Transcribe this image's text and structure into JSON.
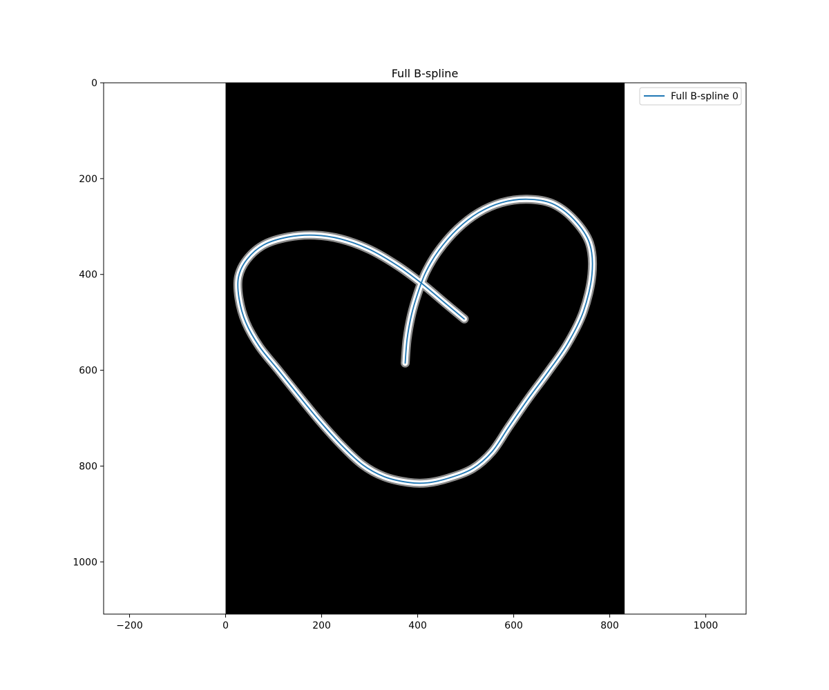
{
  "chart_data": {
    "type": "line",
    "title": "Full B-spline",
    "xlabel": "",
    "ylabel": "",
    "xlim": [
      -254,
      1084
    ],
    "ylim": [
      1109,
      0
    ],
    "y_inverted": true,
    "grid": false,
    "legend_placement": "top-right",
    "x_ticks": [
      -200,
      0,
      200,
      400,
      600,
      800,
      1000
    ],
    "x_tick_labels": [
      "−200",
      "0",
      "200",
      "400",
      "600",
      "800",
      "1000"
    ],
    "y_ticks": [
      0,
      200,
      400,
      600,
      800,
      1000
    ],
    "y_tick_labels": [
      "0",
      "200",
      "400",
      "600",
      "800",
      "1000"
    ],
    "image": {
      "description": "binary mask image",
      "x_extent": [
        0,
        831
      ],
      "y_extent": [
        0,
        1109
      ],
      "background_color": "#000000",
      "stroke_color": "#ffffff"
    },
    "series": [
      {
        "name": "Full B-spline 0",
        "color": "#1f77b4",
        "points": [
          [
            497,
            493
          ],
          [
            455,
            458
          ],
          [
            410,
            420
          ],
          [
            360,
            383
          ],
          [
            300,
            348
          ],
          [
            240,
            326
          ],
          [
            185,
            318
          ],
          [
            130,
            322
          ],
          [
            80,
            338
          ],
          [
            45,
            368
          ],
          [
            27,
            405
          ],
          [
            28,
            450
          ],
          [
            42,
            500
          ],
          [
            70,
            550
          ],
          [
            110,
            600
          ],
          [
            150,
            650
          ],
          [
            195,
            705
          ],
          [
            240,
            755
          ],
          [
            285,
            797
          ],
          [
            330,
            822
          ],
          [
            380,
            834
          ],
          [
            420,
            835
          ],
          [
            465,
            825
          ],
          [
            515,
            805
          ],
          [
            555,
            770
          ],
          [
            590,
            718
          ],
          [
            630,
            660
          ],
          [
            672,
            603
          ],
          [
            712,
            545
          ],
          [
            745,
            478
          ],
          [
            763,
            400
          ],
          [
            758,
            335
          ],
          [
            725,
            285
          ],
          [
            680,
            252
          ],
          [
            628,
            243
          ],
          [
            575,
            250
          ],
          [
            527,
            271
          ],
          [
            483,
            305
          ],
          [
            444,
            350
          ],
          [
            417,
            395
          ],
          [
            400,
            440
          ],
          [
            387,
            485
          ],
          [
            378,
            535
          ],
          [
            374,
            585
          ]
        ]
      }
    ]
  }
}
